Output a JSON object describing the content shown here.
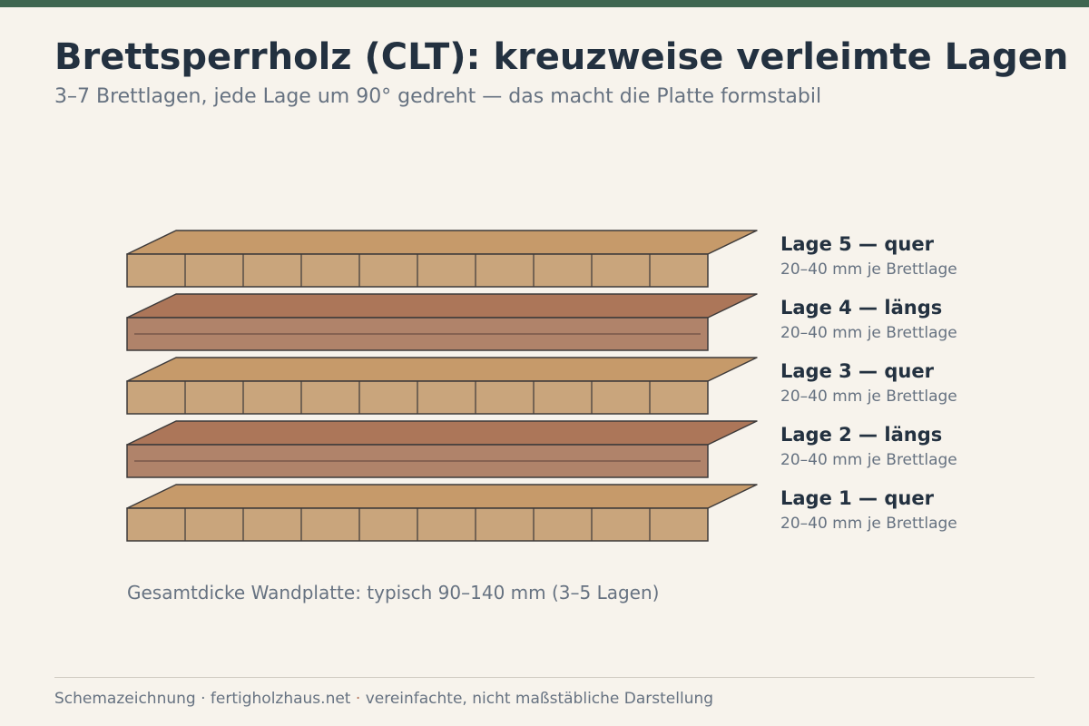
{
  "header": {
    "title": "Brettsperrholz (CLT): kreuzweise verleimte Lagen",
    "subtitle": "3–7 Brettlagen, jede Lage um 90° gedreht — das macht die Platte formstabil"
  },
  "layers": [
    {
      "label": "Lage 5 — quer",
      "detail": "20–40 mm je Brettlage",
      "orientation": "quer"
    },
    {
      "label": "Lage 4 — längs",
      "detail": "20–40 mm je Brettlage",
      "orientation": "längs"
    },
    {
      "label": "Lage 3 — quer",
      "detail": "20–40 mm je Brettlage",
      "orientation": "quer"
    },
    {
      "label": "Lage 2 — längs",
      "detail": "20–40 mm je Brettlage",
      "orientation": "längs"
    },
    {
      "label": "Lage 1 — quer",
      "detail": "20–40 mm je Brettlage",
      "orientation": "quer"
    }
  ],
  "boards_per_cross_layer": 10,
  "total_note": "Gesamtdicke Wandplatte: typisch 90–140 mm (3–5 Lagen)",
  "footer": {
    "part1": "Schemazeichnung · fertigholzhaus.net",
    "separator": " · ",
    "part2": "vereinfachte, nicht maßstäbliche Darstellung"
  },
  "colors": {
    "accent_bar": "#3e6650",
    "quer_front": "#c9a57c",
    "quer_top": "#c69a6a",
    "laengs_front": "#b0836a",
    "laengs_top": "#ac7659",
    "outline": "#3d3a3a",
    "title": "#233140",
    "muted": "#667281"
  }
}
